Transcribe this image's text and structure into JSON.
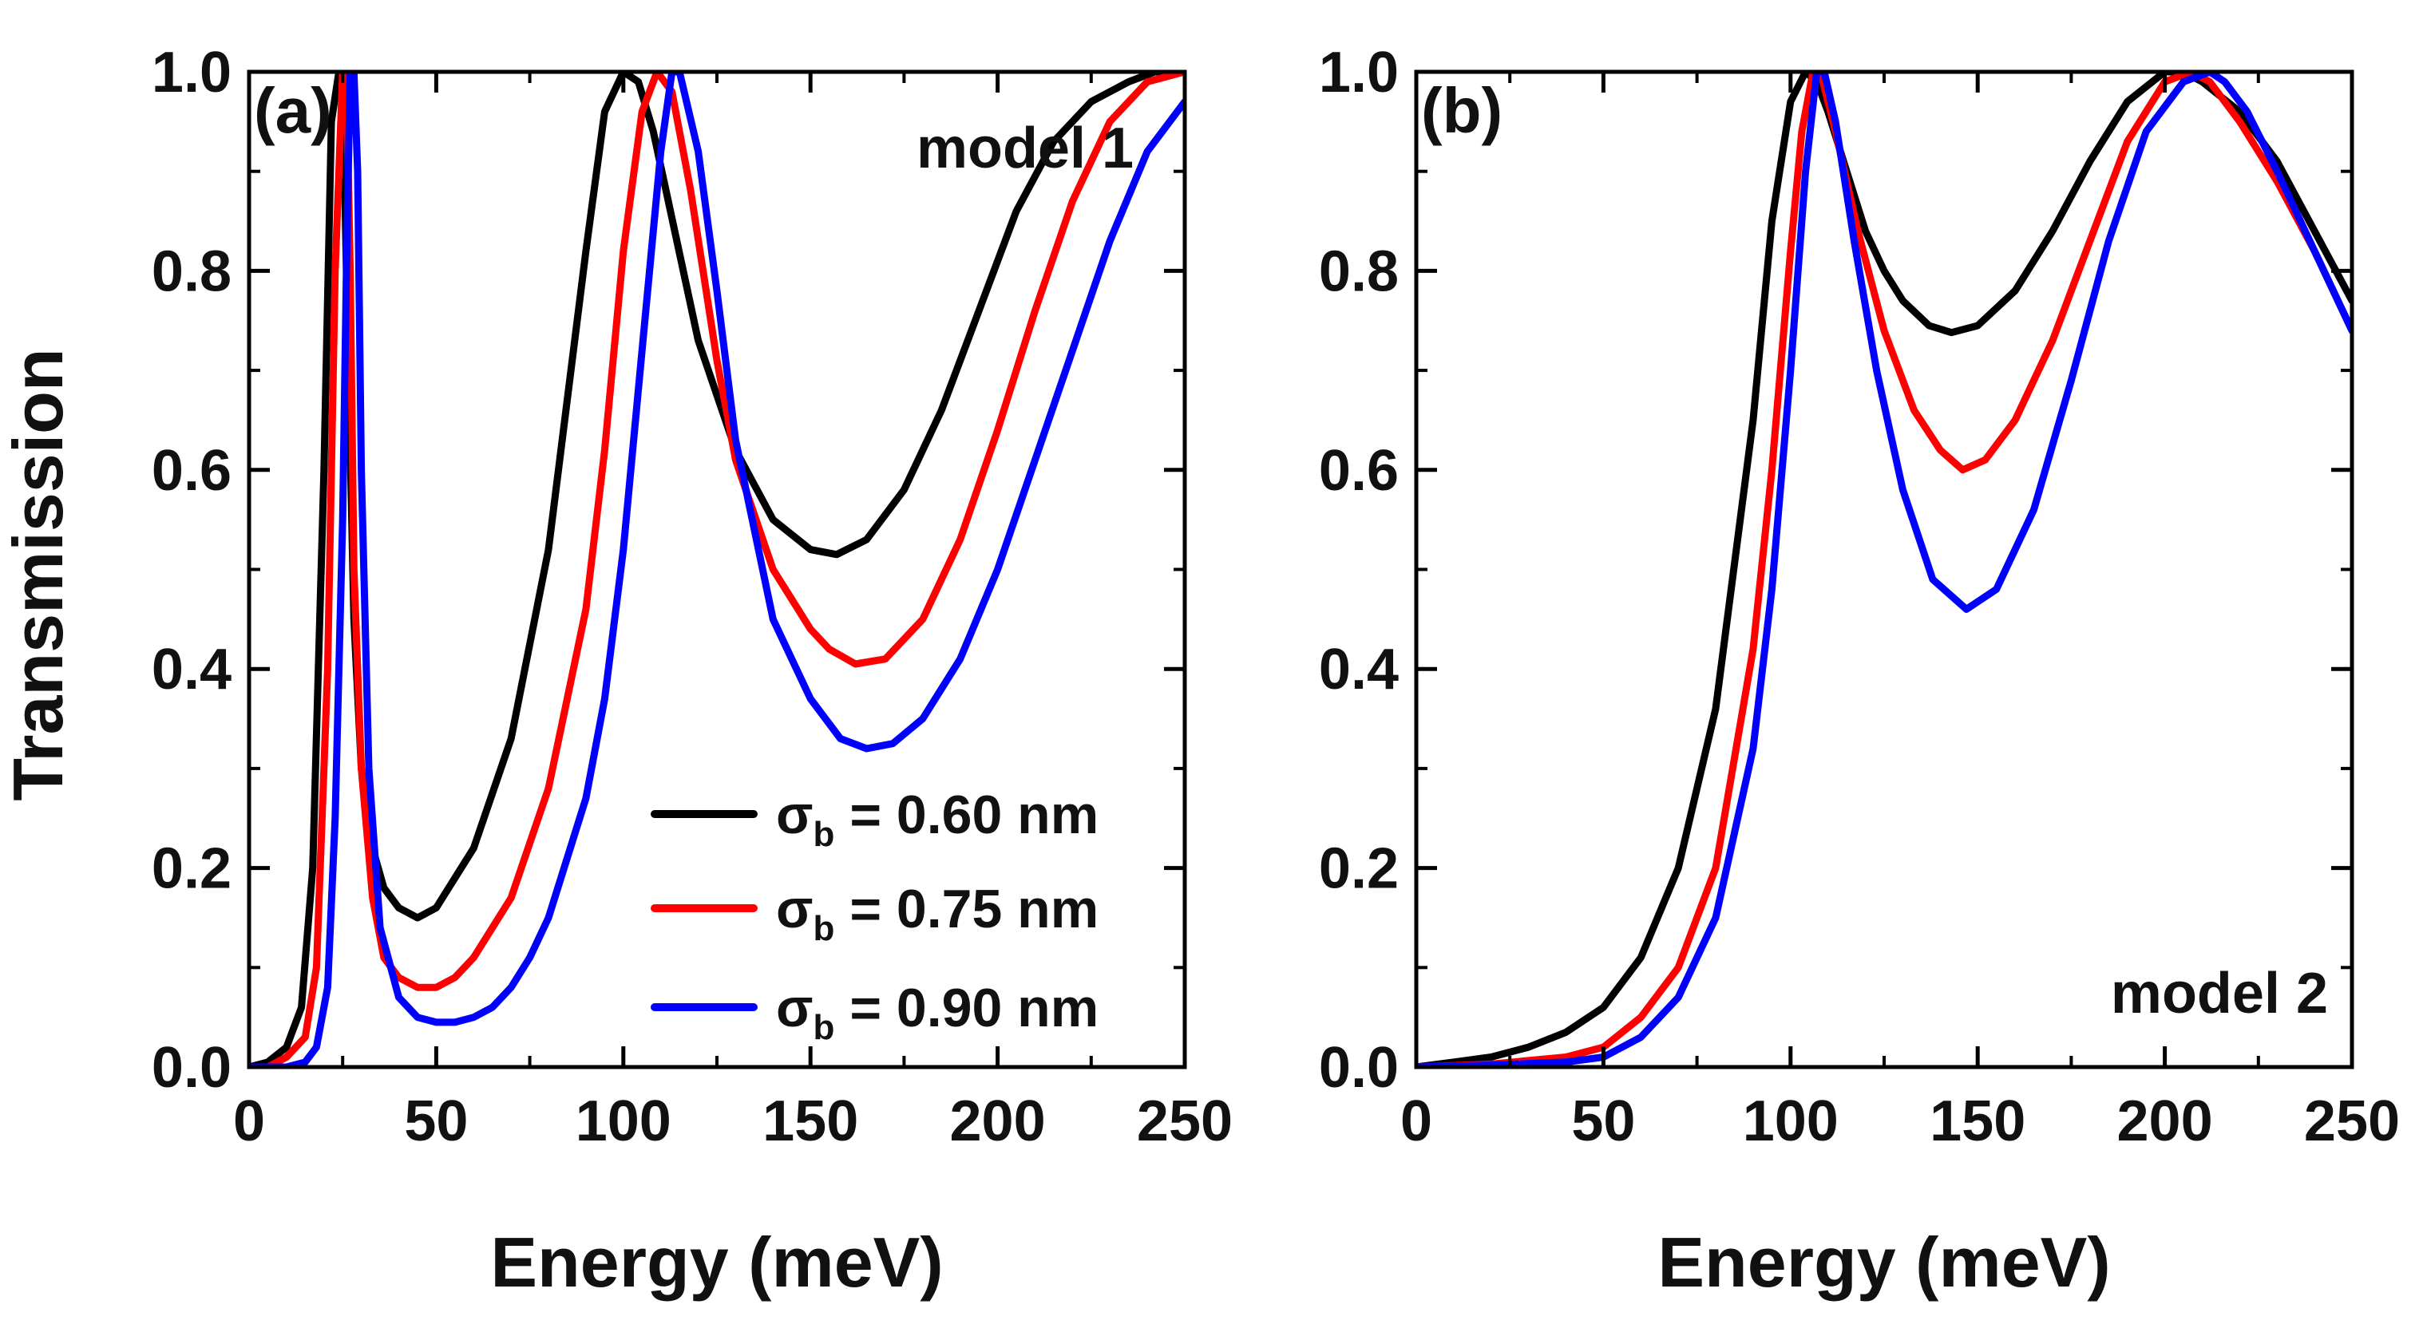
{
  "figure_ylabel": "Transmission",
  "chart_data": [
    {
      "type": "line",
      "panel_label": "(a)",
      "model_label": "model 1",
      "xlabel": "Energy (meV)",
      "ylabel": "Transmission",
      "xlim": [
        0,
        250
      ],
      "ylim": [
        0,
        1.0
      ],
      "xticks": [
        "0",
        "50",
        "100",
        "150",
        "200",
        "250"
      ],
      "yticks": [
        "0.0",
        "0.2",
        "0.4",
        "0.6",
        "0.8",
        "1.0"
      ],
      "legend_position": "lower-right",
      "series": [
        {
          "name": "σb = 0.60 nm",
          "symbol": "σ",
          "subscript": "b",
          "value_text": " = 0.60 nm",
          "color": "#000000",
          "x": [
            0,
            5,
            10,
            14,
            17,
            20,
            22,
            24,
            25,
            26,
            28,
            30,
            33,
            36,
            40,
            45,
            50,
            60,
            70,
            80,
            90,
            95,
            100,
            104,
            108,
            112,
            120,
            130,
            140,
            150,
            157,
            165,
            175,
            185,
            195,
            205,
            215,
            225,
            235,
            242,
            250
          ],
          "y": [
            0.0,
            0.005,
            0.02,
            0.06,
            0.2,
            0.6,
            0.95,
            1.0,
            1.0,
            0.8,
            0.45,
            0.3,
            0.22,
            0.18,
            0.16,
            0.15,
            0.16,
            0.22,
            0.33,
            0.52,
            0.82,
            0.96,
            1.0,
            0.99,
            0.94,
            0.87,
            0.73,
            0.62,
            0.55,
            0.52,
            0.515,
            0.53,
            0.58,
            0.66,
            0.76,
            0.86,
            0.93,
            0.97,
            0.99,
            1.0,
            1.0
          ]
        },
        {
          "name": "σb = 0.75 nm",
          "symbol": "σ",
          "subscript": "b",
          "value_text": " = 0.75 nm",
          "color": "#ff0000",
          "x": [
            0,
            5,
            10,
            15,
            18,
            21,
            23,
            25,
            26,
            27,
            28,
            30,
            33,
            36,
            40,
            45,
            50,
            55,
            60,
            70,
            80,
            90,
            95,
            100,
            105,
            109,
            113,
            118,
            125,
            130,
            140,
            150,
            155,
            162,
            170,
            180,
            190,
            200,
            210,
            220,
            230,
            240,
            250
          ],
          "y": [
            0.0,
            0.0,
            0.01,
            0.03,
            0.1,
            0.4,
            0.8,
            1.0,
            1.0,
            0.8,
            0.5,
            0.3,
            0.17,
            0.11,
            0.09,
            0.08,
            0.08,
            0.09,
            0.11,
            0.17,
            0.28,
            0.46,
            0.62,
            0.82,
            0.96,
            1.0,
            0.98,
            0.88,
            0.71,
            0.61,
            0.5,
            0.44,
            0.42,
            0.405,
            0.41,
            0.45,
            0.53,
            0.64,
            0.76,
            0.87,
            0.95,
            0.99,
            1.0
          ]
        },
        {
          "name": "σb = 0.90 nm",
          "symbol": "σ",
          "subscript": "b",
          "value_text": " = 0.90 nm",
          "color": "#0000ff",
          "x": [
            0,
            5,
            10,
            15,
            18,
            21,
            23,
            25,
            26,
            27,
            28,
            29,
            30,
            32,
            35,
            40,
            45,
            50,
            55,
            60,
            65,
            70,
            75,
            80,
            90,
            95,
            100,
            105,
            110,
            113,
            115,
            120,
            125,
            130,
            140,
            150,
            158,
            165,
            172,
            180,
            190,
            200,
            210,
            220,
            230,
            240,
            250
          ],
          "y": [
            0.0,
            0.0,
            0.0,
            0.005,
            0.02,
            0.08,
            0.25,
            0.55,
            0.8,
            1.0,
            1.0,
            0.9,
            0.6,
            0.3,
            0.14,
            0.07,
            0.05,
            0.045,
            0.045,
            0.05,
            0.06,
            0.08,
            0.11,
            0.15,
            0.27,
            0.37,
            0.52,
            0.72,
            0.92,
            1.0,
            1.0,
            0.92,
            0.78,
            0.63,
            0.45,
            0.37,
            0.33,
            0.32,
            0.325,
            0.35,
            0.41,
            0.5,
            0.61,
            0.72,
            0.83,
            0.92,
            0.97
          ]
        }
      ]
    },
    {
      "type": "line",
      "panel_label": "(b)",
      "model_label": "model 2",
      "xlabel": "Energy (meV)",
      "ylabel": "Transmission",
      "xlim": [
        0,
        250
      ],
      "ylim": [
        0,
        1.0
      ],
      "xticks": [
        "0",
        "50",
        "100",
        "150",
        "200",
        "250"
      ],
      "yticks": [
        "0.0",
        "0.2",
        "0.4",
        "0.6",
        "0.8",
        "1.0"
      ],
      "series": [
        {
          "name": "σb = 0.60 nm",
          "color": "#000000",
          "x": [
            0,
            10,
            20,
            30,
            40,
            50,
            60,
            70,
            80,
            90,
            95,
            100,
            104,
            107,
            110,
            115,
            120,
            125,
            130,
            137,
            143,
            150,
            160,
            170,
            180,
            190,
            200,
            205,
            210,
            220,
            230,
            240,
            250
          ],
          "y": [
            0.0,
            0.005,
            0.01,
            0.02,
            0.035,
            0.06,
            0.11,
            0.2,
            0.36,
            0.65,
            0.85,
            0.97,
            1.0,
            0.99,
            0.96,
            0.9,
            0.84,
            0.8,
            0.77,
            0.745,
            0.738,
            0.745,
            0.78,
            0.84,
            0.91,
            0.97,
            1.0,
            1.0,
            0.99,
            0.96,
            0.91,
            0.84,
            0.77
          ]
        },
        {
          "name": "σb = 0.75 nm",
          "color": "#ff0000",
          "x": [
            0,
            20,
            40,
            50,
            60,
            70,
            80,
            90,
            95,
            100,
            103,
            106,
            108,
            112,
            118,
            125,
            133,
            140,
            146,
            152,
            160,
            170,
            180,
            190,
            200,
            207,
            212,
            220,
            230,
            240,
            250
          ],
          "y": [
            0.0,
            0.003,
            0.01,
            0.02,
            0.05,
            0.1,
            0.2,
            0.42,
            0.6,
            0.82,
            0.94,
            1.0,
            1.0,
            0.94,
            0.84,
            0.74,
            0.66,
            0.62,
            0.6,
            0.61,
            0.65,
            0.73,
            0.83,
            0.93,
            0.99,
            1.0,
            0.99,
            0.95,
            0.89,
            0.82,
            0.74
          ]
        },
        {
          "name": "σb = 0.90 nm",
          "color": "#0000ff",
          "x": [
            0,
            20,
            40,
            50,
            60,
            70,
            80,
            90,
            95,
            100,
            104,
            107,
            109,
            112,
            117,
            123,
            130,
            138,
            147,
            155,
            165,
            175,
            185,
            195,
            205,
            212,
            216,
            222,
            230,
            240,
            250
          ],
          "y": [
            0.0,
            0.002,
            0.005,
            0.01,
            0.03,
            0.07,
            0.15,
            0.32,
            0.48,
            0.7,
            0.9,
            1.0,
            1.0,
            0.95,
            0.83,
            0.7,
            0.58,
            0.49,
            0.46,
            0.48,
            0.56,
            0.69,
            0.83,
            0.94,
            0.99,
            1.0,
            0.99,
            0.96,
            0.9,
            0.82,
            0.74
          ]
        }
      ]
    }
  ]
}
